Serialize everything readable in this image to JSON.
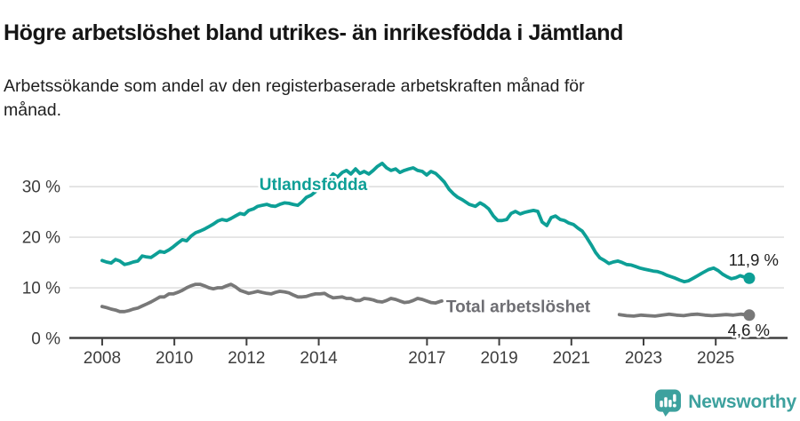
{
  "header": {
    "title": "Högre arbetslöshet bland utrikes- än inrikesfödda i Jämtland",
    "subtitle": "Arbetssökande som andel av den registerbaserade arbetskraften månad för månad."
  },
  "footer": {
    "brand": "Newsworthy",
    "logo_icon": "newsworthy-speech-bubble-chart-icon",
    "brand_color": "#3da19e"
  },
  "chart_data": {
    "type": "line",
    "title": "Högre arbetslöshet bland utrikes- än inrikesfödda i Jämtland",
    "subtitle": "Arbetssökande som andel av den registerbaserade arbetskraften månad för månad.",
    "grid": "horizontal",
    "legend_position": "inline-labels",
    "colors": {
      "grid": "#dcdcdc",
      "axis": "#404040",
      "tick_text": "#3d3d3d",
      "value_text": "#202020"
    },
    "x_axis": {
      "range": [
        2007.09,
        2026.99
      ],
      "ticks": [
        2008,
        2010,
        2012,
        2014,
        2017,
        2019,
        2021,
        2023,
        2025
      ],
      "tick_labels": [
        "2008",
        "2010",
        "2012",
        "2014",
        "2017",
        "2019",
        "2021",
        "2023",
        "2025"
      ]
    },
    "y_axis": {
      "range": [
        0,
        38.8
      ],
      "ticks": [
        0,
        10,
        20,
        30
      ],
      "tick_labels": [
        "0 %",
        "10 %",
        "20 %",
        "30 %"
      ]
    },
    "series": [
      {
        "name": "Utlandsfödda",
        "color": "#0d9f96",
        "end_value": 11.9,
        "name_label": {
          "text": "Utlandsfödda",
          "x": 2013.85,
          "y": 30.5,
          "anchor": "middle"
        },
        "value_label": {
          "text": "11,9 %",
          "dx": 33,
          "dy": -14,
          "anchor": "end"
        },
        "segments": [
          [
            [
              2008.0,
              15.4
            ],
            [
              2008.12,
              15.1
            ],
            [
              2008.25,
              14.9
            ],
            [
              2008.37,
              15.6
            ],
            [
              2008.49,
              15.3
            ],
            [
              2008.62,
              14.6
            ],
            [
              2008.74,
              14.8
            ],
            [
              2008.86,
              15.1
            ],
            [
              2008.99,
              15.3
            ],
            [
              2009.11,
              16.3
            ],
            [
              2009.23,
              16.1
            ],
            [
              2009.35,
              16.0
            ],
            [
              2009.48,
              16.6
            ],
            [
              2009.6,
              17.2
            ],
            [
              2009.72,
              17.0
            ],
            [
              2009.85,
              17.5
            ],
            [
              2009.97,
              18.1
            ],
            [
              2010.09,
              18.8
            ],
            [
              2010.22,
              19.5
            ],
            [
              2010.34,
              19.3
            ],
            [
              2010.46,
              20.2
            ],
            [
              2010.59,
              20.9
            ],
            [
              2010.71,
              21.2
            ],
            [
              2010.83,
              21.6
            ],
            [
              2010.96,
              22.1
            ],
            [
              2011.08,
              22.6
            ],
            [
              2011.2,
              23.2
            ],
            [
              2011.32,
              23.5
            ],
            [
              2011.45,
              23.3
            ],
            [
              2011.57,
              23.7
            ],
            [
              2011.69,
              24.2
            ],
            [
              2011.82,
              24.7
            ],
            [
              2011.94,
              24.5
            ],
            [
              2012.06,
              25.3
            ],
            [
              2012.19,
              25.6
            ],
            [
              2012.31,
              26.1
            ],
            [
              2012.43,
              26.3
            ],
            [
              2012.56,
              26.5
            ],
            [
              2012.68,
              26.2
            ],
            [
              2012.8,
              26.1
            ],
            [
              2012.92,
              26.5
            ],
            [
              2013.05,
              26.8
            ],
            [
              2013.17,
              26.7
            ],
            [
              2013.29,
              26.5
            ],
            [
              2013.42,
              26.3
            ],
            [
              2013.54,
              27.0
            ],
            [
              2013.66,
              27.9
            ],
            [
              2013.79,
              28.3
            ],
            [
              2013.91,
              29.0
            ],
            [
              2014.03,
              30.0
            ],
            [
              2014.16,
              30.5
            ],
            [
              2014.28,
              31.5
            ],
            [
              2014.4,
              32.5
            ],
            [
              2014.52,
              31.9
            ],
            [
              2014.65,
              32.8
            ],
            [
              2014.77,
              33.2
            ],
            [
              2014.89,
              32.5
            ],
            [
              2015.02,
              33.5
            ],
            [
              2015.14,
              32.6
            ],
            [
              2015.26,
              33.0
            ],
            [
              2015.39,
              32.5
            ],
            [
              2015.51,
              33.2
            ],
            [
              2015.63,
              34.0
            ],
            [
              2015.76,
              34.6
            ],
            [
              2015.88,
              33.7
            ],
            [
              2016.0,
              33.2
            ],
            [
              2016.13,
              33.5
            ],
            [
              2016.25,
              32.8
            ],
            [
              2016.37,
              33.2
            ],
            [
              2016.5,
              33.5
            ],
            [
              2016.62,
              33.7
            ],
            [
              2016.74,
              33.2
            ],
            [
              2016.87,
              33.0
            ],
            [
              2016.99,
              32.3
            ],
            [
              2017.11,
              33.0
            ],
            [
              2017.24,
              32.6
            ],
            [
              2017.36,
              31.8
            ],
            [
              2017.48,
              30.9
            ],
            [
              2017.61,
              29.5
            ],
            [
              2017.73,
              28.6
            ],
            [
              2017.85,
              27.9
            ],
            [
              2017.98,
              27.4
            ],
            [
              2018.17,
              26.5
            ],
            [
              2018.34,
              26.1
            ],
            [
              2018.47,
              26.8
            ],
            [
              2018.59,
              26.3
            ],
            [
              2018.71,
              25.6
            ],
            [
              2018.84,
              24.2
            ],
            [
              2018.96,
              23.3
            ],
            [
              2019.08,
              23.3
            ],
            [
              2019.21,
              23.5
            ],
            [
              2019.33,
              24.7
            ],
            [
              2019.45,
              25.1
            ],
            [
              2019.58,
              24.6
            ],
            [
              2019.7,
              24.9
            ],
            [
              2019.82,
              25.1
            ],
            [
              2019.95,
              25.3
            ],
            [
              2020.07,
              25.1
            ],
            [
              2020.19,
              23.0
            ],
            [
              2020.32,
              22.3
            ],
            [
              2020.44,
              23.9
            ],
            [
              2020.56,
              24.2
            ],
            [
              2020.69,
              23.5
            ],
            [
              2020.81,
              23.3
            ],
            [
              2020.93,
              22.8
            ],
            [
              2021.06,
              22.5
            ],
            [
              2021.18,
              21.8
            ],
            [
              2021.3,
              21.2
            ],
            [
              2021.42,
              20.0
            ],
            [
              2021.55,
              18.5
            ],
            [
              2021.67,
              17.0
            ],
            [
              2021.79,
              15.9
            ],
            [
              2021.92,
              15.4
            ],
            [
              2022.04,
              14.8
            ],
            [
              2022.16,
              15.1
            ],
            [
              2022.29,
              15.3
            ],
            [
              2022.41,
              15.0
            ],
            [
              2022.53,
              14.6
            ],
            [
              2022.66,
              14.5
            ],
            [
              2022.78,
              14.2
            ],
            [
              2022.9,
              13.9
            ],
            [
              2023.02,
              13.7
            ],
            [
              2023.15,
              13.5
            ],
            [
              2023.27,
              13.3
            ],
            [
              2023.39,
              13.2
            ],
            [
              2023.52,
              12.9
            ],
            [
              2023.64,
              12.5
            ],
            [
              2023.76,
              12.2
            ],
            [
              2023.88,
              11.9
            ],
            [
              2024.01,
              11.5
            ],
            [
              2024.13,
              11.2
            ],
            [
              2024.25,
              11.4
            ],
            [
              2024.38,
              11.9
            ],
            [
              2024.5,
              12.4
            ],
            [
              2024.62,
              12.9
            ],
            [
              2024.8,
              13.6
            ],
            [
              2024.94,
              13.9
            ],
            [
              2025.07,
              13.4
            ],
            [
              2025.19,
              12.7
            ],
            [
              2025.31,
              12.2
            ],
            [
              2025.43,
              11.8
            ],
            [
              2025.56,
              12.0
            ],
            [
              2025.68,
              12.4
            ],
            [
              2025.8,
              12.1
            ],
            [
              2025.93,
              11.9
            ]
          ]
        ]
      },
      {
        "name": "Total arbetslöshet",
        "color": "#787878",
        "end_value": 4.6,
        "name_label": {
          "text": "Total arbetslöshet",
          "x": 2017.53,
          "y": 6.3,
          "anchor": "start",
          "color": "#6e6e73"
        },
        "value_label": {
          "text": "4,6 %",
          "dx": 23,
          "dy": 23,
          "anchor": "end"
        },
        "segments": [
          [
            [
              2008.0,
              6.3
            ],
            [
              2008.12,
              6.1
            ],
            [
              2008.25,
              5.8
            ],
            [
              2008.37,
              5.6
            ],
            [
              2008.49,
              5.3
            ],
            [
              2008.62,
              5.3
            ],
            [
              2008.74,
              5.5
            ],
            [
              2008.86,
              5.8
            ],
            [
              2008.99,
              6.0
            ],
            [
              2009.11,
              6.4
            ],
            [
              2009.23,
              6.8
            ],
            [
              2009.35,
              7.2
            ],
            [
              2009.48,
              7.7
            ],
            [
              2009.6,
              8.2
            ],
            [
              2009.72,
              8.2
            ],
            [
              2009.85,
              8.8
            ],
            [
              2009.97,
              8.8
            ],
            [
              2010.09,
              9.1
            ],
            [
              2010.22,
              9.5
            ],
            [
              2010.34,
              10.0
            ],
            [
              2010.46,
              10.4
            ],
            [
              2010.59,
              10.7
            ],
            [
              2010.71,
              10.7
            ],
            [
              2010.83,
              10.4
            ],
            [
              2010.96,
              10.0
            ],
            [
              2011.08,
              9.8
            ],
            [
              2011.2,
              10.0
            ],
            [
              2011.32,
              10.0
            ],
            [
              2011.45,
              10.4
            ],
            [
              2011.57,
              10.7
            ],
            [
              2011.69,
              10.2
            ],
            [
              2011.82,
              9.5
            ],
            [
              2011.94,
              9.2
            ],
            [
              2012.06,
              8.9
            ],
            [
              2012.19,
              9.1
            ],
            [
              2012.31,
              9.3
            ],
            [
              2012.43,
              9.1
            ],
            [
              2012.56,
              8.9
            ],
            [
              2012.68,
              8.8
            ],
            [
              2012.8,
              9.1
            ],
            [
              2012.92,
              9.3
            ],
            [
              2013.05,
              9.2
            ],
            [
              2013.17,
              9.0
            ],
            [
              2013.29,
              8.6
            ],
            [
              2013.42,
              8.2
            ],
            [
              2013.54,
              8.2
            ],
            [
              2013.66,
              8.3
            ],
            [
              2013.79,
              8.6
            ],
            [
              2013.91,
              8.8
            ],
            [
              2014.03,
              8.8
            ],
            [
              2014.16,
              8.9
            ],
            [
              2014.28,
              8.4
            ],
            [
              2014.4,
              8.0
            ],
            [
              2014.52,
              8.1
            ],
            [
              2014.65,
              8.2
            ],
            [
              2014.77,
              7.9
            ],
            [
              2014.89,
              7.9
            ],
            [
              2015.02,
              7.5
            ],
            [
              2015.14,
              7.5
            ],
            [
              2015.26,
              7.9
            ],
            [
              2015.39,
              7.8
            ],
            [
              2015.51,
              7.6
            ],
            [
              2015.63,
              7.3
            ],
            [
              2015.76,
              7.2
            ],
            [
              2015.88,
              7.5
            ],
            [
              2016.0,
              7.9
            ],
            [
              2016.13,
              7.7
            ],
            [
              2016.25,
              7.4
            ],
            [
              2016.37,
              7.1
            ],
            [
              2016.5,
              7.2
            ],
            [
              2016.62,
              7.5
            ],
            [
              2016.74,
              7.9
            ],
            [
              2016.87,
              7.7
            ],
            [
              2016.99,
              7.4
            ],
            [
              2017.11,
              7.1
            ],
            [
              2017.24,
              7.0
            ],
            [
              2017.36,
              7.3
            ],
            [
              2017.41,
              7.4
            ]
          ],
          [
            [
              2022.33,
              4.7
            ],
            [
              2022.53,
              4.5
            ],
            [
              2022.73,
              4.4
            ],
            [
              2022.93,
              4.6
            ],
            [
              2023.12,
              4.5
            ],
            [
              2023.32,
              4.4
            ],
            [
              2023.52,
              4.6
            ],
            [
              2023.71,
              4.8
            ],
            [
              2023.91,
              4.6
            ],
            [
              2024.11,
              4.5
            ],
            [
              2024.3,
              4.7
            ],
            [
              2024.5,
              4.8
            ],
            [
              2024.7,
              4.6
            ],
            [
              2024.9,
              4.5
            ],
            [
              2025.09,
              4.6
            ],
            [
              2025.29,
              4.7
            ],
            [
              2025.49,
              4.6
            ],
            [
              2025.69,
              4.8
            ],
            [
              2025.93,
              4.6
            ]
          ]
        ]
      }
    ]
  }
}
